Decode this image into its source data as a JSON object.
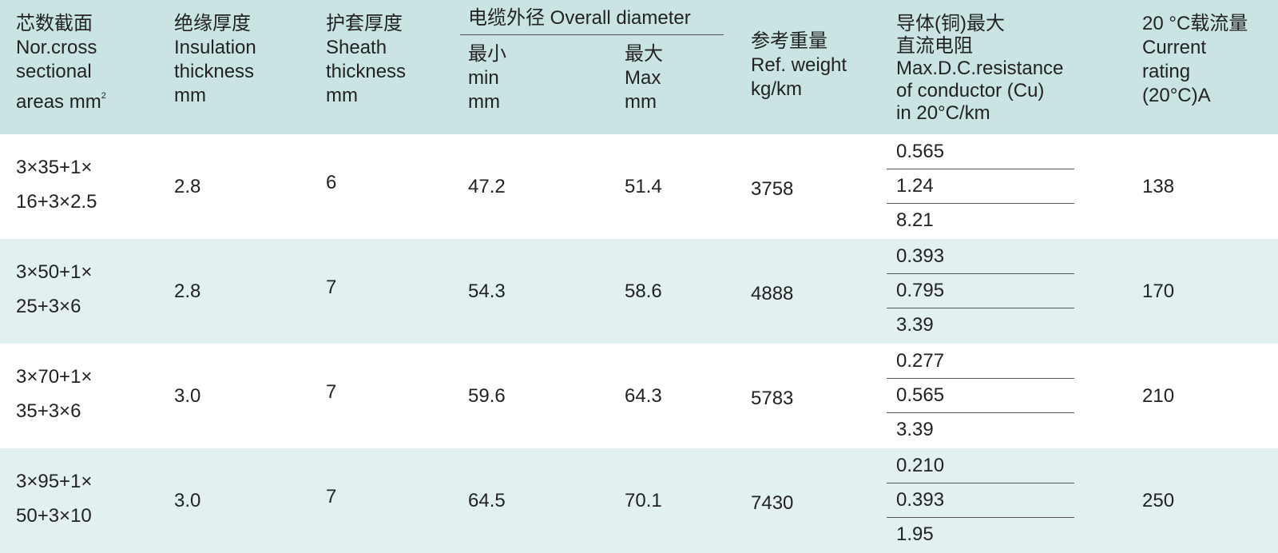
{
  "table": {
    "header": {
      "columns": [
        {
          "lines": [
            "芯数截面",
            "Nor.cross",
            "sectional",
            "areas mm"
          ],
          "sup": "2"
        },
        {
          "lines": [
            "绝缘厚度",
            "Insulation",
            "thickness",
            "mm"
          ]
        },
        {
          "lines": [
            "护套厚度",
            "Sheath",
            "thickness",
            "mm"
          ]
        },
        {
          "lines": [
            "最小",
            "min",
            "mm"
          ]
        },
        {
          "lines": [
            "最大",
            "Max",
            "mm"
          ]
        },
        {
          "lines": [
            "参考重量",
            "Ref. weight",
            "kg/km"
          ]
        },
        {
          "lines": [
            "导体(铜)最大",
            "直流电阻",
            "Max.D.C.resistance",
            "of conductor (Cu)",
            "in 20°C/km"
          ]
        },
        {
          "lines": [
            "20 °C载流量",
            "Current",
            "rating",
            "(20°C)A"
          ]
        }
      ],
      "group_title": "电缆外径  Overall diameter"
    },
    "rows": [
      {
        "section": [
          "3×35+1×",
          "16+3×2.5"
        ],
        "insulation": "2.8",
        "sheath": "6",
        "min": "47.2",
        "max": "51.4",
        "weight": "3758",
        "resistance": [
          "0.565",
          "1.24",
          "8.21"
        ],
        "current": "138"
      },
      {
        "section": [
          "3×50+1×",
          "25+3×6"
        ],
        "insulation": "2.8",
        "sheath": "7",
        "min": "54.3",
        "max": "58.6",
        "weight": "4888",
        "resistance": [
          "0.393",
          "0.795",
          "3.39"
        ],
        "current": "170"
      },
      {
        "section": [
          "3×70+1×",
          "35+3×6"
        ],
        "insulation": "3.0",
        "sheath": "7",
        "min": "59.6",
        "max": "64.3",
        "weight": "5783",
        "resistance": [
          "0.277",
          "0.565",
          "3.39"
        ],
        "current": "210"
      },
      {
        "section": [
          "3×95+1×",
          "50+3×10"
        ],
        "insulation": "3.0",
        "sheath": "7",
        "min": "64.5",
        "max": "70.1",
        "weight": "7430",
        "resistance": [
          "0.210",
          "0.393",
          "1.95"
        ],
        "current": "250"
      }
    ]
  }
}
